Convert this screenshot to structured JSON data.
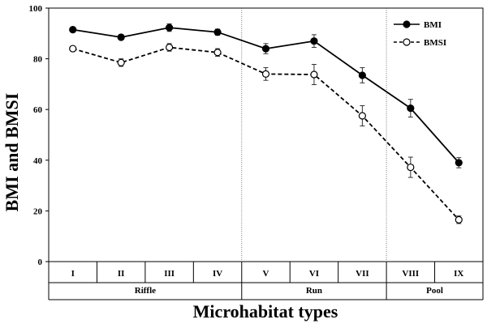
{
  "chart_data": {
    "type": "line",
    "title": "",
    "xlabel": "Microhabitat types",
    "ylabel": "BMI and BMSI",
    "categories": [
      "I",
      "II",
      "III",
      "IV",
      "V",
      "VI",
      "VII",
      "VIII",
      "IX"
    ],
    "groups": [
      {
        "label": "Riffle",
        "categories": [
          "I",
          "II",
          "III",
          "IV"
        ]
      },
      {
        "label": "Run",
        "categories": [
          "V",
          "VI",
          "VII"
        ]
      },
      {
        "label": "Pool",
        "categories": [
          "VIII",
          "IX"
        ]
      }
    ],
    "ylim": [
      0,
      100
    ],
    "yticks": [
      "0",
      "20",
      "40",
      "60",
      "80",
      "100"
    ],
    "grid": false,
    "legend_position": "top-right",
    "series": [
      {
        "name": "BMI",
        "marker": "filled-circle",
        "line": "solid",
        "values": [
          91.5,
          88.5,
          92.3,
          90.5,
          84.0,
          87.0,
          73.5,
          60.5,
          39.0
        ],
        "errors": [
          1.0,
          1.0,
          1.5,
          1.2,
          2.0,
          2.5,
          3.0,
          3.5,
          2.0
        ]
      },
      {
        "name": "BMSI",
        "marker": "open-circle",
        "line": "dashed",
        "values": [
          84.0,
          78.5,
          84.5,
          82.5,
          74.0,
          73.8,
          57.5,
          37.2,
          16.5
        ],
        "errors": [
          1.0,
          1.5,
          1.5,
          1.5,
          2.5,
          4.0,
          4.0,
          4.0,
          1.5
        ]
      }
    ]
  }
}
